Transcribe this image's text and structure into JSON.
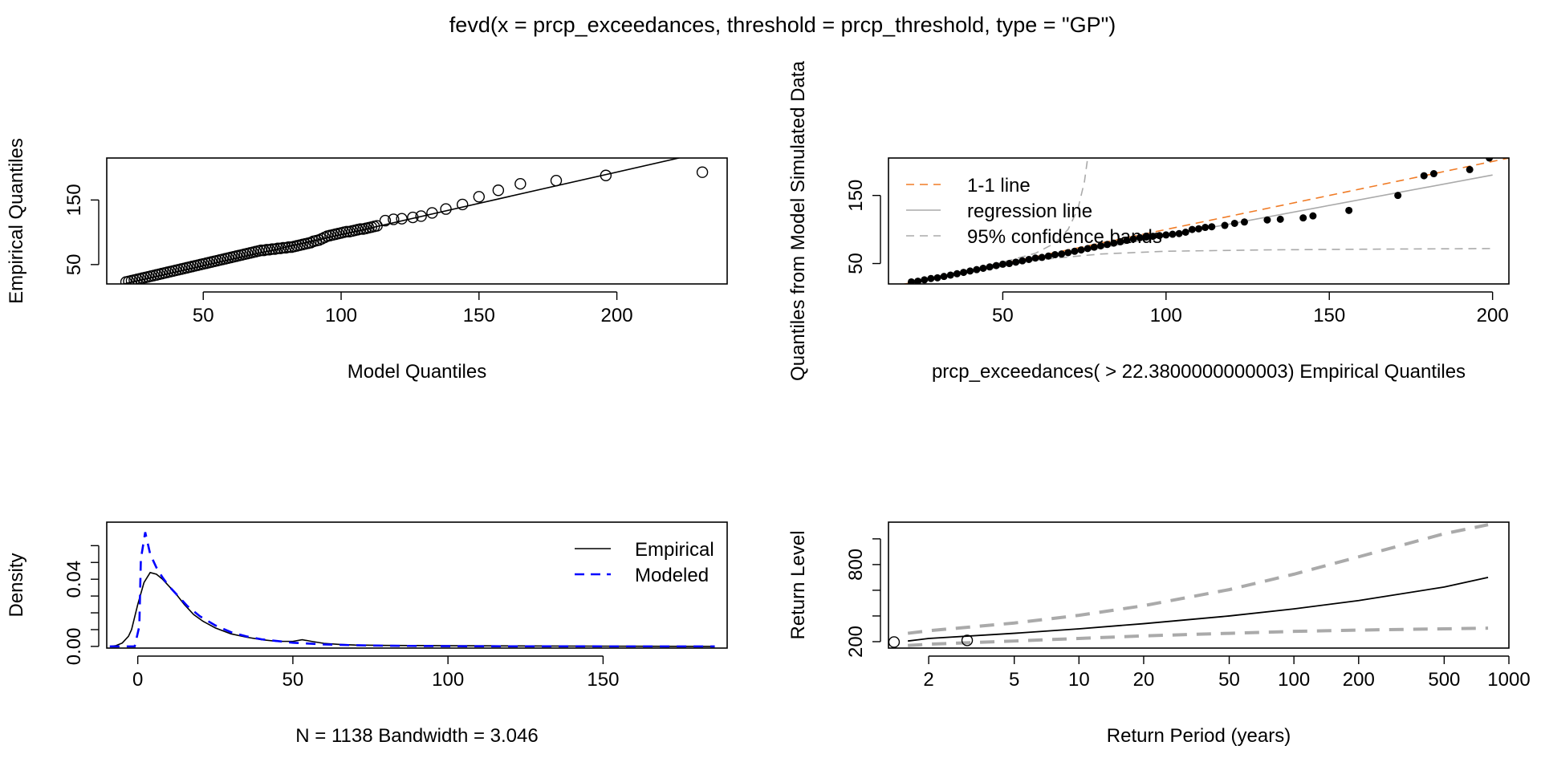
{
  "title": "fevd(x = prcp_exceedances, threshold = prcp_threshold, type = \"GP\")",
  "chart_data": [
    {
      "type": "scatter",
      "id": "qq_model",
      "xlabel": "Model Quantiles",
      "ylabel": "Empirical Quantiles",
      "xlim": [
        15,
        240
      ],
      "ylim": [
        20,
        215
      ],
      "xticks": [
        50,
        100,
        150,
        200
      ],
      "yticks": [
        50,
        150
      ],
      "points": [
        [
          22,
          23
        ],
        [
          23,
          24
        ],
        [
          24,
          25
        ],
        [
          25,
          26
        ],
        [
          26,
          27
        ],
        [
          27,
          28
        ],
        [
          28,
          29
        ],
        [
          29,
          30
        ],
        [
          30,
          31
        ],
        [
          31,
          32
        ],
        [
          32,
          33
        ],
        [
          33,
          34
        ],
        [
          34,
          35
        ],
        [
          35,
          36
        ],
        [
          36,
          37
        ],
        [
          37,
          38
        ],
        [
          38,
          39
        ],
        [
          39,
          40
        ],
        [
          40,
          41
        ],
        [
          41,
          42
        ],
        [
          42,
          43
        ],
        [
          43,
          44
        ],
        [
          44,
          45
        ],
        [
          45,
          46
        ],
        [
          46,
          47
        ],
        [
          47,
          48
        ],
        [
          48,
          49
        ],
        [
          49,
          50
        ],
        [
          50,
          51
        ],
        [
          51,
          52
        ],
        [
          52,
          53
        ],
        [
          53,
          54
        ],
        [
          54,
          55
        ],
        [
          55,
          56
        ],
        [
          56,
          57
        ],
        [
          57,
          58
        ],
        [
          58,
          59
        ],
        [
          59,
          60
        ],
        [
          60,
          61
        ],
        [
          61,
          62
        ],
        [
          62,
          63
        ],
        [
          63,
          64
        ],
        [
          64,
          65
        ],
        [
          65,
          66
        ],
        [
          66,
          67
        ],
        [
          67,
          68
        ],
        [
          68,
          69
        ],
        [
          69,
          70
        ],
        [
          70,
          71
        ],
        [
          71,
          72
        ],
        [
          72,
          72
        ],
        [
          73,
          73
        ],
        [
          74,
          73
        ],
        [
          75,
          74
        ],
        [
          76,
          74
        ],
        [
          77,
          75
        ],
        [
          78,
          75
        ],
        [
          79,
          76
        ],
        [
          80,
          76
        ],
        [
          81,
          77
        ],
        [
          82,
          77
        ],
        [
          83,
          78
        ],
        [
          84,
          79
        ],
        [
          85,
          80
        ],
        [
          86,
          81
        ],
        [
          87,
          82
        ],
        [
          88,
          83
        ],
        [
          89,
          84
        ],
        [
          90,
          86
        ],
        [
          91,
          87
        ],
        [
          92,
          88
        ],
        [
          93,
          90
        ],
        [
          94,
          92
        ],
        [
          95,
          94
        ],
        [
          96,
          95
        ],
        [
          97,
          96
        ],
        [
          98,
          97
        ],
        [
          99,
          98
        ],
        [
          100,
          99
        ],
        [
          101,
          100
        ],
        [
          102,
          101
        ],
        [
          103,
          101
        ],
        [
          104,
          102
        ],
        [
          105,
          103
        ],
        [
          106,
          104
        ],
        [
          107,
          105
        ],
        [
          108,
          105
        ],
        [
          109,
          106
        ],
        [
          110,
          107
        ],
        [
          111,
          108
        ],
        [
          112,
          109
        ],
        [
          113,
          110
        ],
        [
          116,
          118
        ],
        [
          119,
          120
        ],
        [
          122,
          121
        ],
        [
          126,
          123
        ],
        [
          129,
          125
        ],
        [
          133,
          130
        ],
        [
          138,
          136
        ],
        [
          144,
          143
        ],
        [
          150,
          155
        ],
        [
          157,
          165
        ],
        [
          165,
          175
        ],
        [
          178,
          180
        ],
        [
          196,
          188
        ],
        [
          231,
          193
        ]
      ],
      "reference_line": [
        [
          15,
          14
        ],
        [
          240,
          232
        ]
      ]
    },
    {
      "type": "scatter",
      "id": "qq_simulated",
      "xlabel": "prcp_exceedances( > 22.3800000000003) Empirical Quantiles",
      "ylabel": "Quantiles from Model Simulated Data",
      "xlim": [
        15,
        205
      ],
      "ylim": [
        20,
        205
      ],
      "xticks": [
        50,
        100,
        150,
        200
      ],
      "yticks": [
        50,
        150
      ],
      "legend": {
        "position": "top-left",
        "entries": [
          {
            "label": "1-1 line",
            "color": "#f07c27",
            "dash": "dashed"
          },
          {
            "label": "regression line",
            "color": "#aaaaaa",
            "dash": "solid"
          },
          {
            "label": "95% confidence bands",
            "color": "#aaaaaa",
            "dash": "dashed"
          }
        ]
      },
      "points": [
        [
          22,
          23
        ],
        [
          24,
          24
        ],
        [
          26,
          26
        ],
        [
          28,
          28
        ],
        [
          30,
          29
        ],
        [
          32,
          31
        ],
        [
          34,
          33
        ],
        [
          36,
          35
        ],
        [
          38,
          37
        ],
        [
          40,
          39
        ],
        [
          42,
          41
        ],
        [
          44,
          43
        ],
        [
          46,
          45
        ],
        [
          48,
          47
        ],
        [
          50,
          49
        ],
        [
          52,
          50
        ],
        [
          54,
          52
        ],
        [
          56,
          54
        ],
        [
          58,
          56
        ],
        [
          60,
          58
        ],
        [
          62,
          59
        ],
        [
          64,
          61
        ],
        [
          66,
          63
        ],
        [
          68,
          64
        ],
        [
          70,
          66
        ],
        [
          72,
          68
        ],
        [
          74,
          70
        ],
        [
          76,
          72
        ],
        [
          78,
          74
        ],
        [
          80,
          76
        ],
        [
          82,
          78
        ],
        [
          84,
          80
        ],
        [
          86,
          82
        ],
        [
          88,
          84
        ],
        [
          90,
          86
        ],
        [
          92,
          88
        ],
        [
          94,
          89
        ],
        [
          96,
          90
        ],
        [
          98,
          91
        ],
        [
          100,
          92
        ],
        [
          102,
          93
        ],
        [
          104,
          94
        ],
        [
          106,
          96
        ],
        [
          108,
          100
        ],
        [
          110,
          101
        ],
        [
          112,
          103
        ],
        [
          114,
          104
        ],
        [
          118,
          106
        ],
        [
          121,
          109
        ],
        [
          124,
          111
        ],
        [
          131,
          114
        ],
        [
          135,
          115
        ],
        [
          142,
          117
        ],
        [
          145,
          120
        ],
        [
          156,
          128
        ],
        [
          171,
          150
        ],
        [
          179,
          179
        ],
        [
          182,
          182
        ],
        [
          193,
          188
        ],
        [
          199,
          205
        ]
      ],
      "one_to_one_line": [
        [
          15,
          15
        ],
        [
          205,
          205
        ]
      ],
      "regression_line": [
        [
          22,
          21
        ],
        [
          200,
          180
        ]
      ],
      "conf_upper": [
        [
          22,
          23
        ],
        [
          30,
          31
        ],
        [
          40,
          41
        ],
        [
          50,
          52
        ],
        [
          60,
          65
        ],
        [
          66,
          80
        ],
        [
          70,
          100
        ],
        [
          73,
          130
        ],
        [
          75,
          170
        ],
        [
          76,
          205
        ]
      ],
      "conf_lower": [
        [
          22,
          22
        ],
        [
          40,
          39
        ],
        [
          60,
          55
        ],
        [
          80,
          64
        ],
        [
          100,
          68
        ],
        [
          130,
          70
        ],
        [
          160,
          71
        ],
        [
          200,
          72
        ]
      ]
    },
    {
      "type": "line",
      "id": "density",
      "xlabel": "N = 1138   Bandwidth = 3.046",
      "ylabel": "Density",
      "xlim": [
        -10,
        190
      ],
      "ylim": [
        -0.001,
        0.074
      ],
      "xticks": [
        0,
        50,
        100,
        150
      ],
      "yticks": [
        0.0,
        0.04
      ],
      "minor_yticks": [
        0.01,
        0.02,
        0.03,
        0.05,
        0.06
      ],
      "ytick_labels": [
        "0.00",
        "0.04"
      ],
      "legend": {
        "position": "top-right",
        "entries": [
          {
            "label": "Empirical",
            "color": "#000000",
            "dash": "solid"
          },
          {
            "label": "Modeled",
            "color": "#0000ff",
            "dash": "dashed"
          }
        ]
      },
      "series": [
        {
          "name": "Empirical",
          "color": "#000000",
          "x": [
            -9,
            -7,
            -5,
            -3,
            -2,
            0,
            2,
            4,
            6,
            8,
            10,
            12,
            15,
            18,
            21,
            25,
            30,
            35,
            40,
            45,
            50,
            53,
            56,
            60,
            65,
            70,
            80,
            90,
            100,
            120,
            140,
            160,
            186
          ],
          "y": [
            0.0,
            0.0005,
            0.002,
            0.006,
            0.01,
            0.025,
            0.038,
            0.044,
            0.043,
            0.04,
            0.036,
            0.032,
            0.025,
            0.019,
            0.015,
            0.011,
            0.0075,
            0.0055,
            0.004,
            0.003,
            0.003,
            0.004,
            0.003,
            0.0018,
            0.0012,
            0.0008,
            0.0006,
            0.0005,
            0.0004,
            0.0003,
            0.0002,
            0.0001,
            0.0
          ]
        },
        {
          "name": "Modeled",
          "color": "#0000ff",
          "x": [
            -9,
            -1,
            0.5,
            1,
            2.4,
            4,
            6,
            8,
            10,
            13,
            16,
            20,
            25,
            30,
            35,
            40,
            50,
            60,
            70,
            80,
            100,
            120,
            150,
            186
          ],
          "y": [
            0.0,
            0.0,
            0.012,
            0.052,
            0.068,
            0.055,
            0.047,
            0.041,
            0.036,
            0.03,
            0.024,
            0.018,
            0.0125,
            0.0085,
            0.006,
            0.0042,
            0.0022,
            0.0012,
            0.0007,
            0.0004,
            0.00015,
            6e-05,
            2e-05,
            0.0
          ]
        }
      ]
    },
    {
      "type": "line",
      "id": "return_level",
      "xlabel": "Return Period (years)",
      "ylabel": "Return Level",
      "xscale": "log",
      "xlim": [
        1.3,
        1000
      ],
      "ylim": [
        150,
        1130
      ],
      "xticks": [
        2,
        5,
        10,
        20,
        50,
        100,
        200,
        500,
        1000
      ],
      "yticks": [
        200,
        800
      ],
      "minor_yticks": [
        400,
        600,
        1000
      ],
      "points": [
        [
          1.38,
          197
        ],
        [
          3.02,
          210
        ]
      ],
      "series": [
        {
          "name": "estimate",
          "color": "#000000",
          "dash": "solid",
          "x": [
            1.6,
            2,
            5,
            10,
            20,
            50,
            100,
            200,
            500,
            800
          ],
          "y": [
            205,
            225,
            265,
            300,
            340,
            400,
            455,
            520,
            625,
            700
          ]
        },
        {
          "name": "upper",
          "color": "#aaaaaa",
          "dash": "dashed",
          "x": [
            1.6,
            2,
            5,
            10,
            20,
            50,
            100,
            200,
            500,
            800
          ],
          "y": [
            265,
            285,
            345,
            405,
            480,
            605,
            725,
            860,
            1040,
            1110
          ]
        },
        {
          "name": "lower",
          "color": "#aaaaaa",
          "dash": "dashed",
          "x": [
            1.6,
            2,
            5,
            10,
            20,
            50,
            100,
            200,
            500,
            800
          ],
          "y": [
            170,
            180,
            205,
            225,
            245,
            265,
            280,
            290,
            300,
            305
          ]
        }
      ]
    }
  ]
}
